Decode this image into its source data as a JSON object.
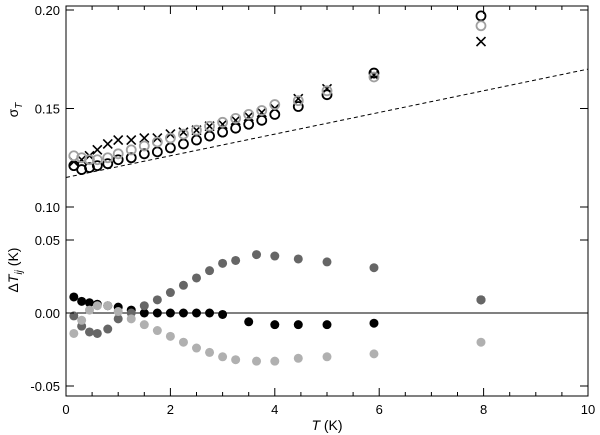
{
  "chart_data": {
    "type": "scatter",
    "xlabel": "T (K)",
    "x_ticks": [
      "0",
      "2",
      "4",
      "6",
      "8",
      "10"
    ],
    "xlim": [
      0,
      10
    ],
    "panels": [
      {
        "ylabel": "σ_T",
        "ylim": [
          0.1,
          0.2
        ],
        "y_ticks": [
          "0.10",
          "0.15",
          "0.20"
        ],
        "series": [
          {
            "marker": "cross",
            "color": "#000000",
            "x": [
              0.15,
              0.3,
              0.45,
              0.6,
              0.8,
              1.0,
              1.25,
              1.5,
              1.75,
              2.0,
              2.25,
              2.5,
              2.75,
              3.0,
              3.25,
              3.5,
              3.75,
              4.0,
              4.45,
              5.0,
              5.9,
              7.95
            ],
            "y": [
              0.123,
              0.124,
              0.126,
              0.129,
              0.132,
              0.134,
              0.134,
              0.135,
              0.135,
              0.137,
              0.138,
              0.139,
              0.141,
              0.142,
              0.144,
              0.146,
              0.148,
              0.15,
              0.155,
              0.16,
              0.167,
              0.184
            ]
          },
          {
            "marker": "circle",
            "color": "#000000",
            "x": [
              0.15,
              0.3,
              0.45,
              0.6,
              0.8,
              1.0,
              1.25,
              1.5,
              1.75,
              2.0,
              2.25,
              2.5,
              2.75,
              3.0,
              3.25,
              3.5,
              3.75,
              4.0,
              4.45,
              5.0,
              5.9,
              7.95
            ],
            "y": [
              0.121,
              0.119,
              0.12,
              0.121,
              0.122,
              0.124,
              0.125,
              0.127,
              0.128,
              0.13,
              0.132,
              0.134,
              0.136,
              0.138,
              0.14,
              0.142,
              0.144,
              0.147,
              0.151,
              0.157,
              0.168,
              0.197
            ]
          },
          {
            "marker": "circle",
            "color": "#a0a0a0",
            "x": [
              0.15,
              0.3,
              0.45,
              0.6,
              0.8,
              1.0,
              1.25,
              1.5,
              1.75,
              2.0,
              2.25,
              2.5,
              2.75,
              3.0,
              3.25,
              3.5,
              3.75,
              4.0,
              4.45,
              5.0,
              5.9,
              7.95
            ],
            "y": [
              0.126,
              0.125,
              0.124,
              0.124,
              0.125,
              0.127,
              0.129,
              0.131,
              0.133,
              0.135,
              0.137,
              0.139,
              0.141,
              0.143,
              0.145,
              0.147,
              0.149,
              0.152,
              0.154,
              0.159,
              0.166,
              0.192
            ]
          }
        ],
        "reference_line": {
          "style": "dashed",
          "x": [
            0,
            10
          ],
          "y": [
            0.115,
            0.17
          ]
        }
      },
      {
        "ylabel": "ΔT_ij (K)",
        "ylim": [
          -0.055,
          0.1
        ],
        "y_ticks": [
          "-0.05",
          "0.00",
          "0.05"
        ],
        "zero_line": true,
        "series": [
          {
            "marker": "filled-circle",
            "color": "#000000",
            "x": [
              0.15,
              0.3,
              0.45,
              0.6,
              0.8,
              1.0,
              1.25,
              1.5,
              1.75,
              2.0,
              2.25,
              2.5,
              2.75,
              3.0,
              3.5,
              4.0,
              4.45,
              5.0,
              5.9,
              7.95
            ],
            "y": [
              0.011,
              0.008,
              0.007,
              0.006,
              0.005,
              0.004,
              0.002,
              0.0,
              0.0,
              0.0,
              0.0,
              0.0,
              0.0,
              -0.001,
              -0.006,
              -0.008,
              -0.008,
              -0.008,
              -0.007,
              0.009
            ]
          },
          {
            "marker": "filled-circle",
            "color": "#666666",
            "x": [
              0.15,
              0.3,
              0.45,
              0.6,
              0.8,
              1.0,
              1.25,
              1.5,
              1.75,
              2.0,
              2.25,
              2.5,
              2.75,
              3.0,
              3.25,
              3.65,
              4.0,
              4.45,
              5.0,
              5.9,
              7.95
            ],
            "y": [
              -0.002,
              -0.009,
              -0.013,
              -0.014,
              -0.011,
              -0.004,
              0.0,
              0.005,
              0.009,
              0.014,
              0.019,
              0.024,
              0.029,
              0.034,
              0.036,
              0.04,
              0.039,
              0.037,
              0.035,
              0.031,
              0.009
            ]
          },
          {
            "marker": "filled-circle",
            "color": "#b0b0b0",
            "x": [
              0.15,
              0.3,
              0.45,
              0.6,
              0.8,
              1.0,
              1.25,
              1.5,
              1.75,
              2.0,
              2.25,
              2.5,
              2.75,
              3.0,
              3.25,
              3.65,
              4.0,
              4.45,
              5.0,
              5.9,
              7.95
            ],
            "y": [
              -0.014,
              -0.005,
              0.002,
              0.005,
              0.005,
              0.001,
              -0.004,
              -0.008,
              -0.012,
              -0.016,
              -0.02,
              -0.024,
              -0.027,
              -0.03,
              -0.032,
              -0.033,
              -0.033,
              -0.031,
              -0.03,
              -0.028,
              -0.02
            ]
          }
        ]
      }
    ]
  }
}
